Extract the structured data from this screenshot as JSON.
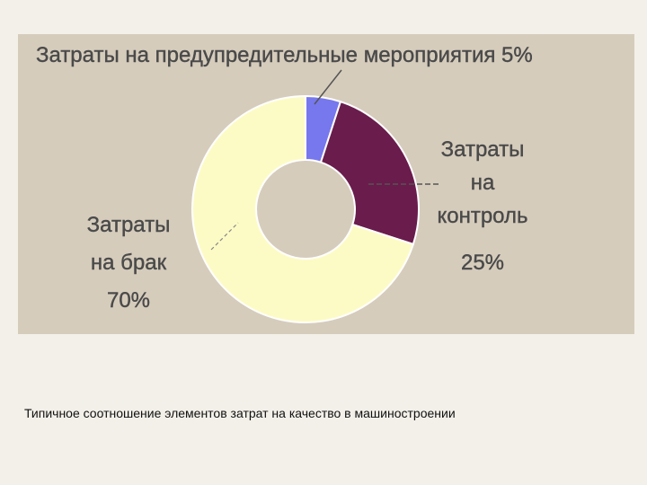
{
  "chart_data": {
    "type": "pie",
    "style": "donut",
    "title": "Затраты на предупредительные мероприятия 5%",
    "slices": [
      {
        "label": "Затраты на предупредительные мероприятия",
        "value": 5,
        "color": "#7777ee"
      },
      {
        "label": "Затраты на контроль",
        "value": 25,
        "color": "#6a1c4c"
      },
      {
        "label": "Затраты на брак",
        "value": 70,
        "color": "#fdfbc5"
      }
    ],
    "annotations": {
      "control": {
        "lines": [
          "Затраты",
          "на",
          "контроль"
        ],
        "percent": "25%"
      },
      "defect": {
        "lines": [
          "Затраты",
          "на брак",
          "70%"
        ]
      }
    }
  },
  "caption": "Типичное соотношение элементов затрат на качество в машиностроении"
}
